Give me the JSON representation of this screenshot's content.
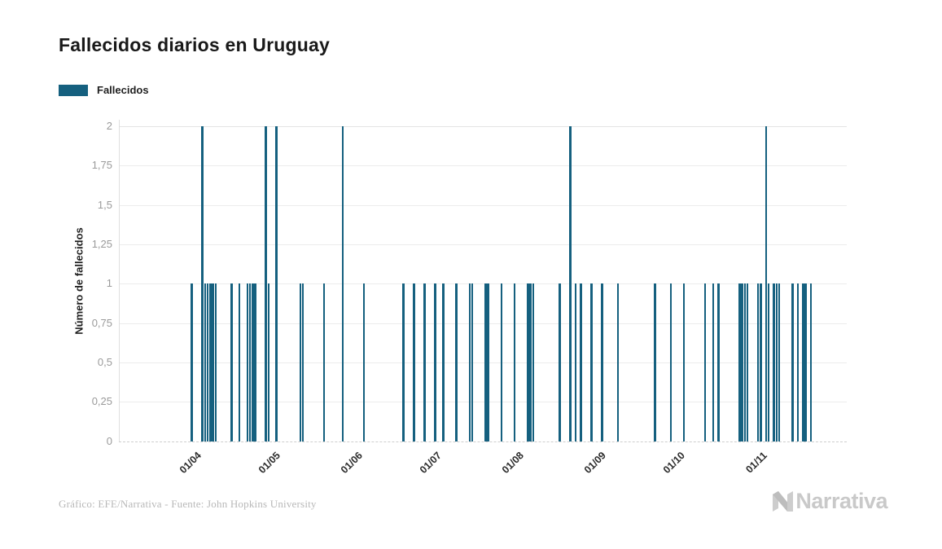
{
  "header": {
    "title": "Fallecidos diarios en Uruguay"
  },
  "legend": {
    "label": "Fallecidos",
    "color": "#15607f"
  },
  "footer": {
    "credit": "Gráfico: EFE/Narrativa - Fuente: John Hopkins University",
    "logo_text": "Narrativa"
  },
  "chart_data": {
    "type": "bar",
    "title": "Fallecidos diarios en Uruguay",
    "xlabel": "",
    "ylabel": "Número de fallecidos",
    "ylim": [
      0,
      2
    ],
    "grid": true,
    "legend_position": "top-left",
    "legend_entries": [
      "Fallecidos"
    ],
    "bar_color": "#15607f",
    "yticks": [
      {
        "value": 0,
        "label": "0"
      },
      {
        "value": 0.25,
        "label": "0,25"
      },
      {
        "value": 0.5,
        "label": "0,5"
      },
      {
        "value": 0.75,
        "label": "0,75"
      },
      {
        "value": 1,
        "label": "1"
      },
      {
        "value": 1.25,
        "label": "1,25"
      },
      {
        "value": 1.5,
        "label": "1,5"
      },
      {
        "value": 1.75,
        "label": "1,75"
      },
      {
        "value": 2,
        "label": "2"
      }
    ],
    "xticks": [
      {
        "label": "01/04",
        "day": 0
      },
      {
        "label": "01/05",
        "day": 30
      },
      {
        "label": "01/06",
        "day": 61
      },
      {
        "label": "01/07",
        "day": 91
      },
      {
        "label": "01/08",
        "day": 122
      },
      {
        "label": "01/09",
        "day": 153
      },
      {
        "label": "01/10",
        "day": 183
      },
      {
        "label": "01/11",
        "day": 214
      }
    ],
    "series_note": "bars = [day_offset_from_01/04, deaths]; days with no bar = 0 deaths",
    "bars": [
      [
        0,
        1
      ],
      [
        4,
        2
      ],
      [
        5,
        1
      ],
      [
        6,
        1
      ],
      [
        7,
        1
      ],
      [
        8,
        1
      ],
      [
        9,
        1
      ],
      [
        15,
        1
      ],
      [
        18,
        1
      ],
      [
        21,
        1
      ],
      [
        22,
        1
      ],
      [
        23,
        1
      ],
      [
        24,
        1
      ],
      [
        28,
        2
      ],
      [
        29,
        1
      ],
      [
        32,
        2
      ],
      [
        41,
        1
      ],
      [
        42,
        1
      ],
      [
        50,
        1
      ],
      [
        57,
        2
      ],
      [
        65,
        1
      ],
      [
        80,
        1
      ],
      [
        84,
        1
      ],
      [
        88,
        1
      ],
      [
        92,
        1
      ],
      [
        95,
        1
      ],
      [
        100,
        1
      ],
      [
        105,
        1
      ],
      [
        106,
        1
      ],
      [
        111,
        1
      ],
      [
        112,
        1
      ],
      [
        117,
        1
      ],
      [
        122,
        1
      ],
      [
        127,
        1
      ],
      [
        128,
        1
      ],
      [
        129,
        1
      ],
      [
        139,
        1
      ],
      [
        143,
        2
      ],
      [
        145,
        1
      ],
      [
        147,
        1
      ],
      [
        151,
        1
      ],
      [
        155,
        1
      ],
      [
        161,
        1
      ],
      [
        175,
        1
      ],
      [
        181,
        1
      ],
      [
        186,
        1
      ],
      [
        194,
        1
      ],
      [
        197,
        1
      ],
      [
        199,
        1
      ],
      [
        207,
        1
      ],
      [
        208,
        1
      ],
      [
        209,
        1
      ],
      [
        210,
        1
      ],
      [
        214,
        1
      ],
      [
        215,
        1
      ],
      [
        217,
        2
      ],
      [
        218,
        1
      ],
      [
        220,
        1
      ],
      [
        221,
        1
      ],
      [
        222,
        1
      ],
      [
        227,
        1
      ],
      [
        229,
        1
      ],
      [
        231,
        1
      ],
      [
        232,
        1
      ],
      [
        234,
        1
      ]
    ]
  }
}
